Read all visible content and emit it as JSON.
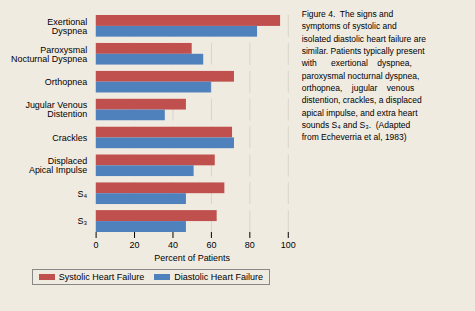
{
  "chart_data": {
    "type": "bar",
    "orientation": "horizontal",
    "categories": [
      "Exertional\nDyspnea",
      "Paroxysmal\nNocturnal Dyspnea",
      "Orthopnea",
      "Jugular Venous\nDistention",
      "Crackles",
      "Displaced\nApical Impulse",
      "S₄",
      "S₃"
    ],
    "series": [
      {
        "name": "Systolic Heart Failure",
        "color": "#c0504d",
        "values": [
          96,
          50,
          72,
          47,
          71,
          62,
          67,
          63
        ]
      },
      {
        "name": "Diastolic Heart Failure",
        "color": "#4f81bd",
        "values": [
          84,
          56,
          60,
          36,
          72,
          51,
          47,
          47
        ]
      }
    ],
    "xlabel": "Percent of Patients",
    "xlim": [
      0,
      100
    ],
    "xticks": [
      0,
      20,
      40,
      60,
      80,
      100
    ],
    "grid": true,
    "legend": "bottom",
    "caption": "Figure 4.  The signs and\nsymptoms of systolic and\nisolated diastolic heart failure are\nsimilar. Patients typically present\nwith      exertional    dyspnea,\nparoxysmal nocturnal dyspnea,\northopnea,    jugular    venous\ndistention, crackles, a displaced\napical impulse, and extra heart\nsounds S₄ and S₃.  (Adapted\nfrom Echeverria et al, 1983)"
  }
}
